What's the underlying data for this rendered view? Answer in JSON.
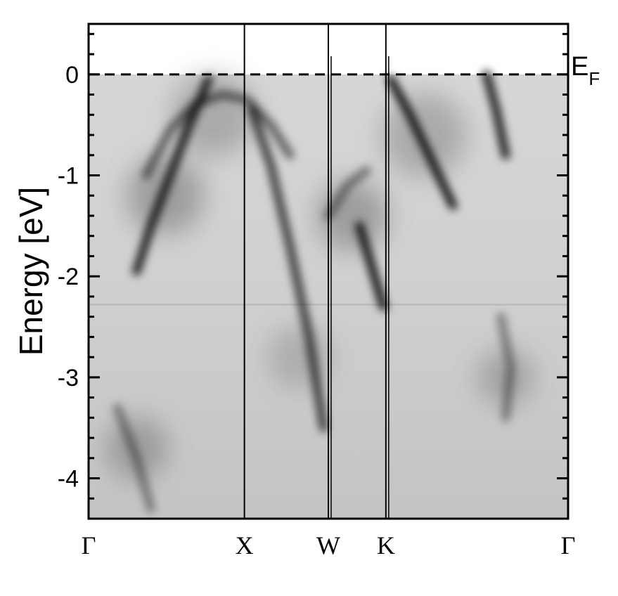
{
  "chart_data": {
    "type": "heatmap",
    "title": "",
    "ylabel": "Energy [eV]",
    "xlabel": "",
    "ylim": [
      -4.4,
      0.5
    ],
    "yticks": [
      {
        "value": 0,
        "label": "0"
      },
      {
        "value": -1,
        "label": "-1"
      },
      {
        "value": -2,
        "label": "-2"
      },
      {
        "value": -3,
        "label": "-3"
      },
      {
        "value": -4,
        "label": "-4"
      }
    ],
    "k_points": [
      {
        "label": "Γ",
        "position": 0.0
      },
      {
        "label": "X",
        "position": 0.325
      },
      {
        "label": "W",
        "position": 0.5
      },
      {
        "label": "K",
        "position": 0.62
      },
      {
        "label": "Γ",
        "position": 1.0
      }
    ],
    "fermi_level": {
      "energy": 0,
      "label": "E",
      "subscript": "F"
    },
    "colormap": "grayscale, dark = high intensity",
    "bands": [
      {
        "name": "b1",
        "points": [
          [
            0.1,
            -1.95
          ],
          [
            0.13,
            -1.5
          ],
          [
            0.17,
            -1.0
          ],
          [
            0.21,
            -0.5
          ],
          [
            0.25,
            -0.05
          ]
        ],
        "weight": 0.85
      },
      {
        "name": "b2",
        "points": [
          [
            0.12,
            -1.0
          ],
          [
            0.17,
            -0.55
          ],
          [
            0.22,
            -0.3
          ],
          [
            0.28,
            -0.2
          ],
          [
            0.33,
            -0.25
          ],
          [
            0.38,
            -0.5
          ],
          [
            0.42,
            -0.8
          ]
        ],
        "weight": 0.55
      },
      {
        "name": "b3",
        "points": [
          [
            0.34,
            -0.35
          ],
          [
            0.38,
            -0.9
          ],
          [
            0.42,
            -1.7
          ],
          [
            0.46,
            -2.6
          ],
          [
            0.49,
            -3.5
          ]
        ],
        "weight": 0.7
      },
      {
        "name": "b4",
        "points": [
          [
            0.5,
            -1.4
          ],
          [
            0.54,
            -1.1
          ],
          [
            0.58,
            -0.95
          ]
        ],
        "weight": 0.45
      },
      {
        "name": "b5",
        "points": [
          [
            0.565,
            -1.5
          ],
          [
            0.59,
            -1.9
          ],
          [
            0.615,
            -2.3
          ]
        ],
        "weight": 0.9
      },
      {
        "name": "b6",
        "points": [
          [
            0.63,
            -0.05
          ],
          [
            0.67,
            -0.4
          ],
          [
            0.72,
            -0.9
          ],
          [
            0.76,
            -1.3
          ]
        ],
        "weight": 0.9
      },
      {
        "name": "b7",
        "points": [
          [
            0.83,
            0.0
          ],
          [
            0.85,
            -0.35
          ],
          [
            0.87,
            -0.8
          ]
        ],
        "weight": 0.85
      },
      {
        "name": "b8",
        "points": [
          [
            0.06,
            -3.3
          ],
          [
            0.1,
            -3.8
          ],
          [
            0.13,
            -4.3
          ]
        ],
        "weight": 0.4
      },
      {
        "name": "b9",
        "points": [
          [
            0.86,
            -2.4
          ],
          [
            0.88,
            -2.9
          ],
          [
            0.87,
            -3.4
          ]
        ],
        "weight": 0.4
      }
    ]
  }
}
